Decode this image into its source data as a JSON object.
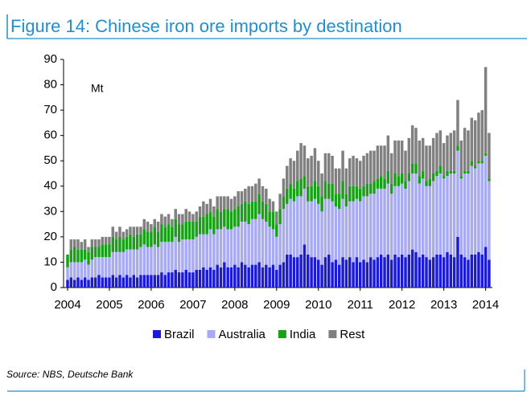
{
  "chart_data": {
    "type": "stacked_bar",
    "title": "Figure 14: Chinese iron ore imports by destination",
    "y_label": "Mt",
    "source": "Source: NBS,  Deutsche Bank",
    "categories": [
      "2004",
      null,
      null,
      null,
      null,
      null,
      null,
      null,
      null,
      null,
      null,
      null,
      "2005",
      null,
      null,
      null,
      null,
      null,
      null,
      null,
      null,
      null,
      null,
      null,
      "2006",
      null,
      null,
      null,
      null,
      null,
      null,
      null,
      null,
      null,
      null,
      null,
      "2007",
      null,
      null,
      null,
      null,
      null,
      null,
      null,
      null,
      null,
      null,
      null,
      "2008",
      null,
      null,
      null,
      null,
      null,
      null,
      null,
      null,
      null,
      null,
      null,
      "2009",
      null,
      null,
      null,
      null,
      null,
      null,
      null,
      null,
      null,
      null,
      null,
      "2010",
      null,
      null,
      null,
      null,
      null,
      null,
      null,
      null,
      null,
      null,
      null,
      "2011",
      null,
      null,
      null,
      null,
      null,
      null,
      null,
      null,
      null,
      null,
      null,
      "2012",
      null,
      null,
      null,
      null,
      null,
      null,
      null,
      null,
      null,
      null,
      null,
      "2013",
      null,
      null,
      null,
      null,
      null,
      null,
      null,
      null,
      null,
      null,
      null,
      "2014",
      null
    ],
    "series": [
      {
        "name": "Brazil",
        "color": "#1a1ad8",
        "values": [
          3,
          4,
          3,
          4,
          3,
          4,
          3,
          4,
          4,
          5,
          4,
          4,
          4,
          5,
          4,
          5,
          4,
          5,
          4,
          5,
          4,
          5,
          5,
          5,
          5,
          5,
          5,
          6,
          5,
          6,
          6,
          7,
          6,
          6,
          7,
          6,
          6,
          7,
          7,
          8,
          7,
          8,
          7,
          9,
          8,
          10,
          8,
          8,
          9,
          8,
          10,
          9,
          8,
          9,
          9,
          10,
          8,
          9,
          8,
          9,
          7,
          9,
          10,
          13,
          13,
          12,
          12,
          13,
          17,
          13,
          12,
          12,
          11,
          9,
          12,
          13,
          10,
          11,
          9,
          12,
          11,
          12,
          10,
          12,
          10,
          11,
          10,
          12,
          11,
          12,
          13,
          12,
          13,
          11,
          13,
          12,
          13,
          12,
          13,
          15,
          14,
          12,
          13,
          12,
          11,
          12,
          13,
          13,
          12,
          14,
          13,
          12,
          20,
          13,
          12,
          11,
          13,
          13,
          14,
          13,
          16,
          11
        ]
      },
      {
        "name": "Australia",
        "color": "#a9abf2",
        "values": [
          5,
          6,
          7,
          6,
          7,
          7,
          6,
          7,
          8,
          7,
          8,
          8,
          8,
          9,
          10,
          9,
          10,
          10,
          11,
          10,
          11,
          11,
          12,
          11,
          11,
          12,
          11,
          12,
          13,
          12,
          12,
          13,
          12,
          13,
          12,
          13,
          13,
          13,
          14,
          13,
          14,
          15,
          14,
          14,
          15,
          14,
          15,
          15,
          15,
          16,
          16,
          17,
          17,
          18,
          18,
          19,
          19,
          17,
          16,
          14,
          13,
          16,
          21,
          20,
          22,
          22,
          24,
          23,
          22,
          21,
          22,
          23,
          22,
          21,
          23,
          22,
          24,
          21,
          22,
          23,
          21,
          22,
          24,
          23,
          24,
          25,
          26,
          25,
          26,
          27,
          26,
          27,
          28,
          26,
          27,
          28,
          28,
          27,
          29,
          30,
          31,
          29,
          30,
          28,
          29,
          30,
          31,
          32,
          31,
          30,
          32,
          33,
          34,
          30,
          33,
          34,
          35,
          34,
          35,
          36,
          36,
          31
        ]
      },
      {
        "name": "India",
        "color": "#18a018",
        "values": [
          5,
          5,
          6,
          5,
          5,
          4,
          5,
          5,
          4,
          4,
          5,
          5,
          5,
          6,
          5,
          6,
          5,
          5,
          6,
          5,
          6,
          5,
          6,
          6,
          6,
          7,
          6,
          7,
          6,
          7,
          6,
          7,
          7,
          6,
          7,
          7,
          7,
          6,
          7,
          7,
          8,
          7,
          7,
          8,
          7,
          7,
          8,
          7,
          7,
          8,
          7,
          8,
          8,
          7,
          7,
          8,
          7,
          7,
          6,
          7,
          5,
          6,
          5,
          6,
          6,
          5,
          6,
          7,
          5,
          6,
          6,
          7,
          7,
          6,
          7,
          6,
          7,
          5,
          6,
          7,
          5,
          6,
          6,
          5,
          5,
          4,
          5,
          4,
          5,
          4,
          5,
          4,
          5,
          4,
          5,
          4,
          4,
          3,
          3,
          4,
          4,
          3,
          3,
          2,
          3,
          3,
          2,
          3,
          1,
          2,
          1,
          1,
          2,
          1,
          1,
          1,
          2,
          1,
          1,
          1,
          1,
          1
        ]
      },
      {
        "name": "Rest",
        "color": "#808080",
        "values": [
          0,
          4,
          3,
          4,
          3,
          4,
          2,
          3,
          3,
          3,
          3,
          3,
          3,
          4,
          3,
          4,
          3,
          3,
          3,
          4,
          3,
          3,
          4,
          4,
          3,
          3,
          4,
          4,
          4,
          4,
          3,
          4,
          4,
          4,
          5,
          4,
          3,
          4,
          4,
          6,
          4,
          5,
          4,
          5,
          6,
          5,
          5,
          5,
          5,
          6,
          5,
          5,
          7,
          6,
          7,
          6,
          6,
          6,
          5,
          4,
          5,
          6,
          7,
          9,
          10,
          11,
          12,
          14,
          12,
          11,
          12,
          13,
          10,
          9,
          11,
          12,
          11,
          10,
          10,
          12,
          10,
          11,
          12,
          11,
          11,
          12,
          12,
          13,
          12,
          13,
          12,
          13,
          14,
          12,
          13,
          14,
          13,
          12,
          14,
          15,
          14,
          14,
          13,
          14,
          13,
          14,
          15,
          14,
          13,
          14,
          15,
          16,
          18,
          14,
          17,
          16,
          17,
          18,
          19,
          20,
          34,
          18
        ]
      }
    ],
    "ylim": [
      0,
      90
    ],
    "yticks": [
      0,
      10,
      20,
      30,
      40,
      50,
      60,
      70,
      80,
      90
    ],
    "grid": false,
    "legend": "bottom"
  }
}
